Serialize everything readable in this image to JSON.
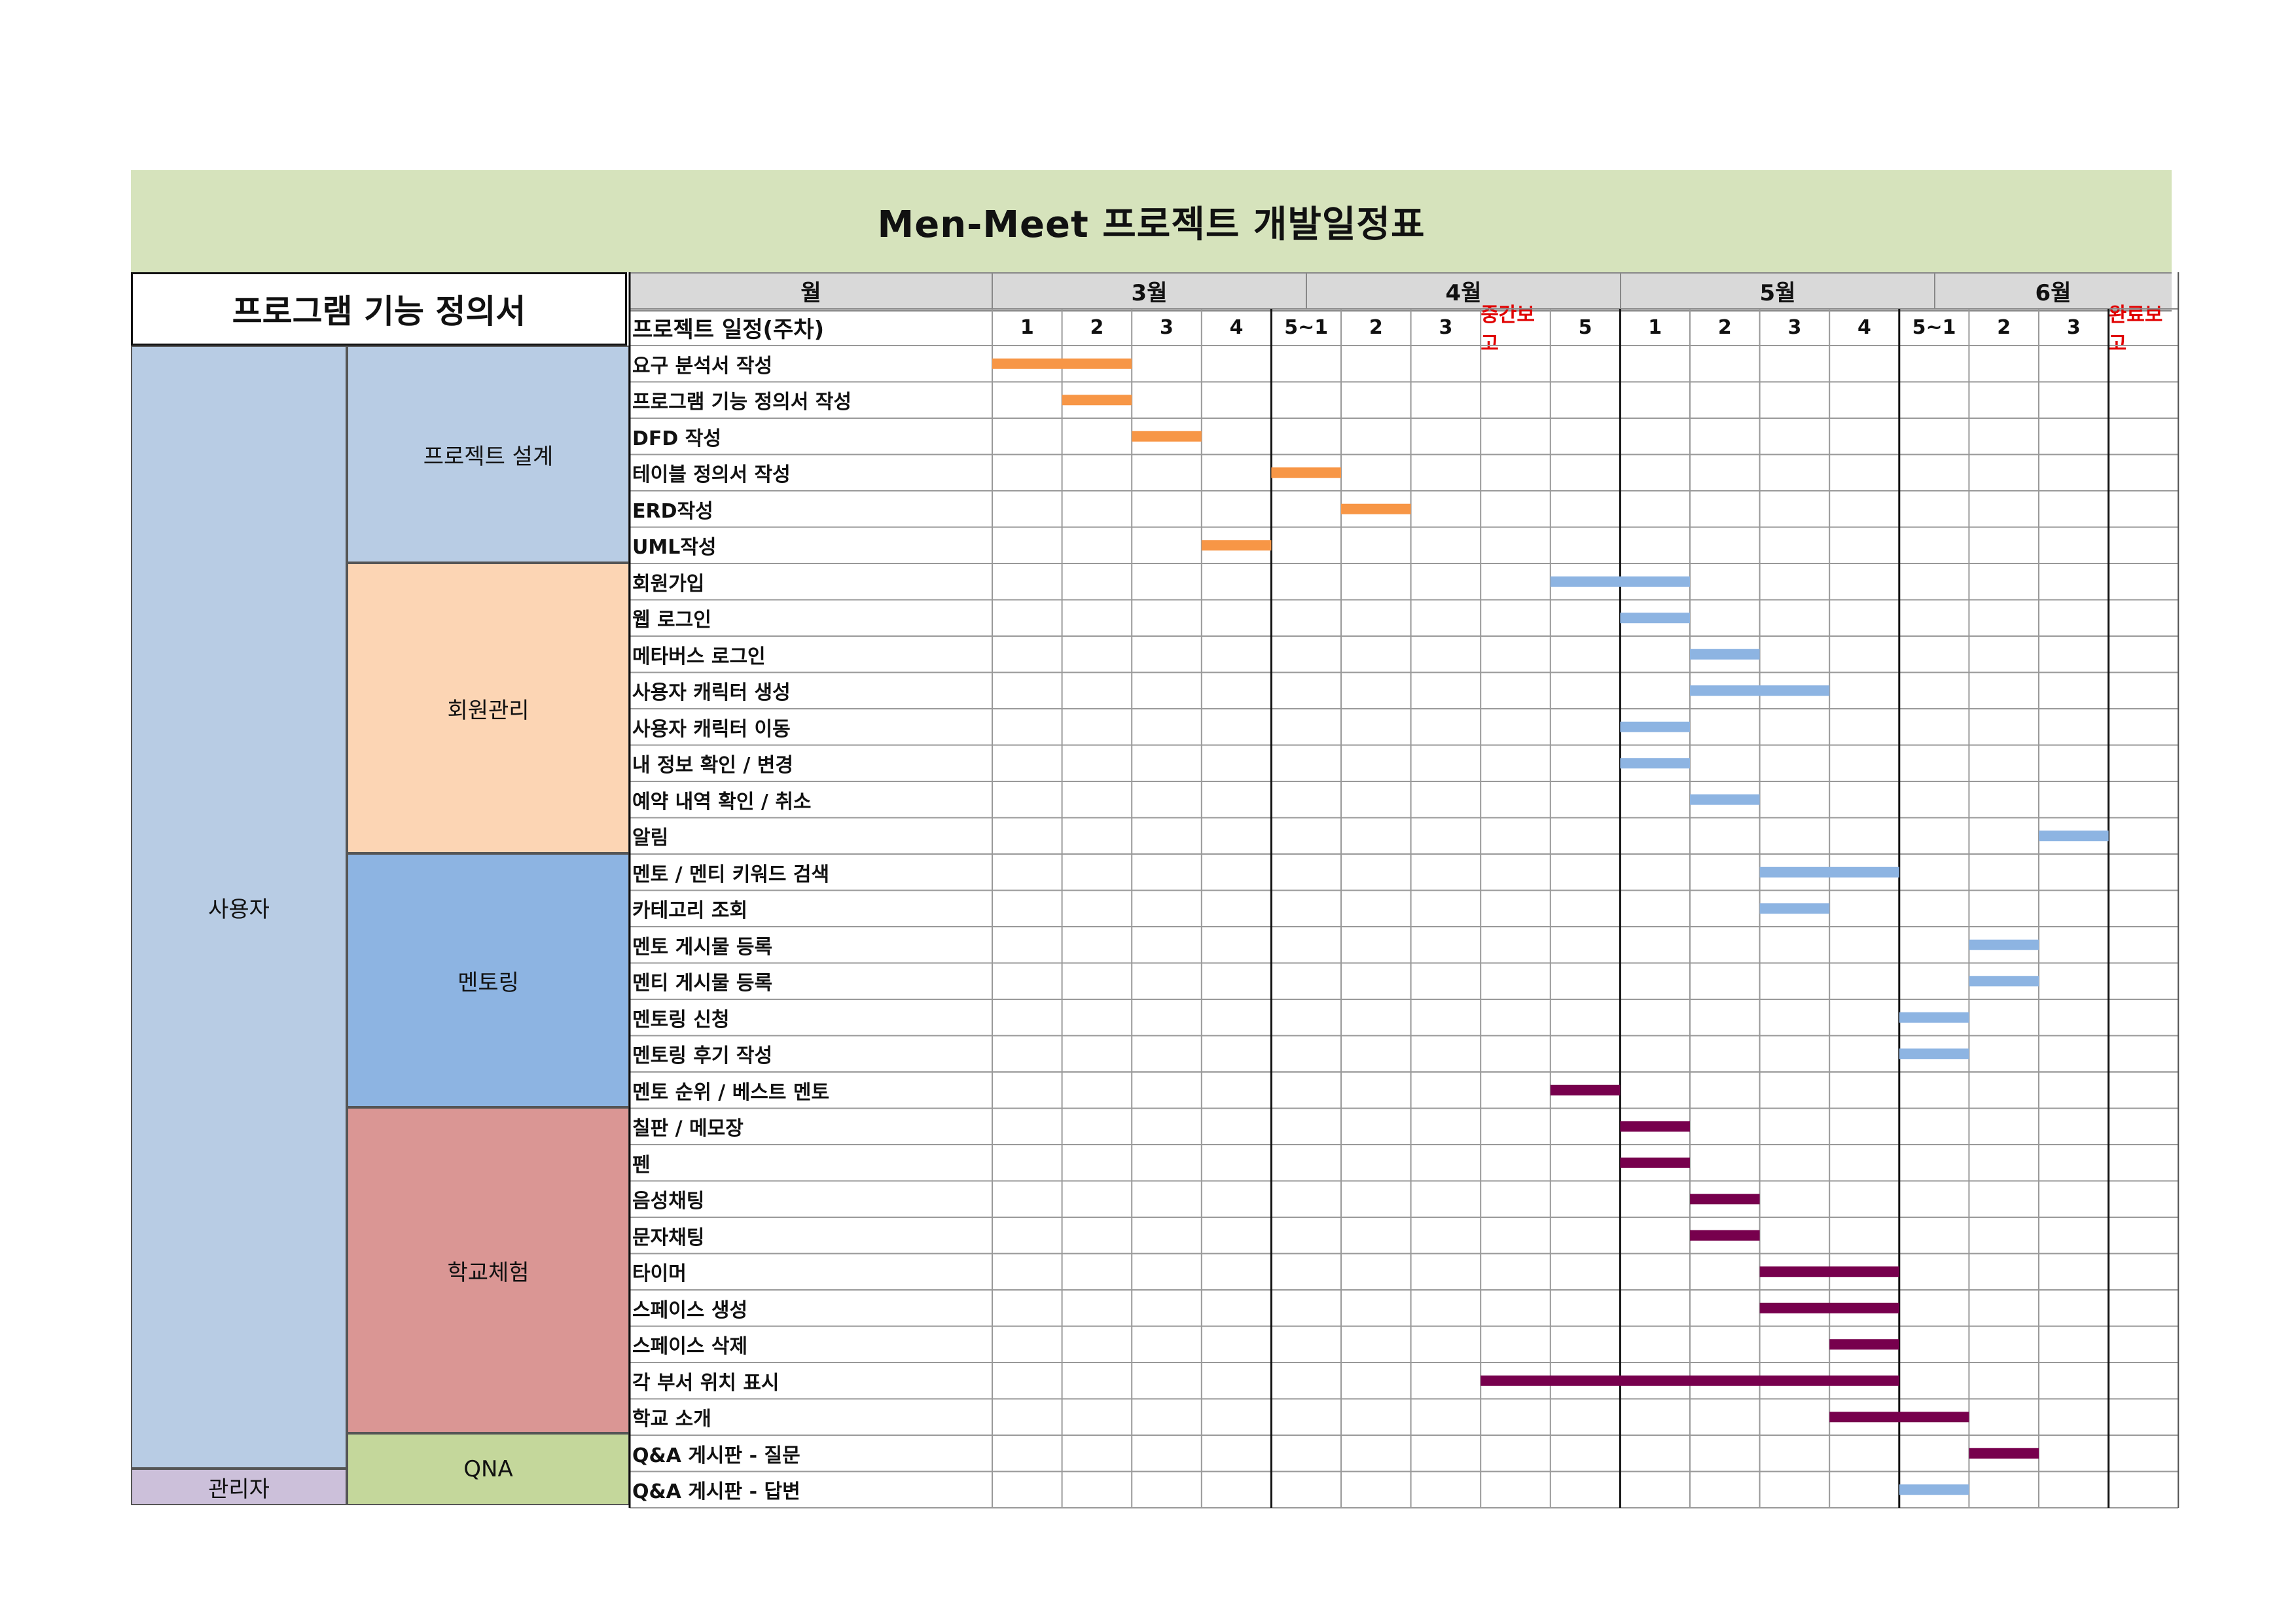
{
  "title": "Men-Meet 프로젝트 개발일정표",
  "left_header": "프로그램 기능 정의서",
  "header": {
    "month_label": "월",
    "schedule_label": "프로젝트 일정(주차)",
    "months": [
      "3월",
      "4월",
      "5월",
      "6월"
    ],
    "weeks": [
      "1",
      "2",
      "3",
      "4",
      "5~1",
      "2",
      "3",
      "중간보고",
      "5",
      "1",
      "2",
      "3",
      "4",
      "5~1",
      "2",
      "3",
      "완료보고"
    ]
  },
  "groups": {
    "user": "사용자",
    "admin": "관리자",
    "categories": [
      "프로젝트 설계",
      "회원관리",
      "멘토링",
      "학교체험",
      "QNA"
    ]
  },
  "colors": {
    "title_band": "#d6e3bc",
    "user": "#b8cce4",
    "admin": "#ccc0da",
    "design": "#b8cce4",
    "member": "#fcd5b4",
    "mentoring": "#8db4e2",
    "school": "#da9694",
    "qna": "#c4d79b",
    "bar_orange": "#f79646",
    "bar_blue": "#8db4e2",
    "bar_purple": "#77004d",
    "report_red": "#e00000"
  },
  "tasks": [
    {
      "name": "요구 분석서 작성",
      "start": 0,
      "end": 2,
      "color": "orange"
    },
    {
      "name": "프로그램 기능 정의서 작성",
      "start": 1,
      "end": 2,
      "color": "orange"
    },
    {
      "name": "DFD 작성",
      "start": 2,
      "end": 3,
      "color": "orange"
    },
    {
      "name": "테이블 정의서 작성",
      "start": 4,
      "end": 5,
      "color": "orange"
    },
    {
      "name": "ERD작성",
      "start": 5,
      "end": 6,
      "color": "orange"
    },
    {
      "name": "UML작성",
      "start": 3,
      "end": 4,
      "color": "orange"
    },
    {
      "name": "회원가입",
      "start": 8,
      "end": 10,
      "color": "blue"
    },
    {
      "name": "웹 로그인",
      "start": 9,
      "end": 10,
      "color": "blue"
    },
    {
      "name": "메타버스 로그인",
      "start": 10,
      "end": 11,
      "color": "blue"
    },
    {
      "name": "사용자 캐릭터 생성",
      "start": 10,
      "end": 12,
      "color": "blue"
    },
    {
      "name": "사용자 캐릭터 이동",
      "start": 9,
      "end": 10,
      "color": "blue"
    },
    {
      "name": "내 정보 확인 / 변경",
      "start": 9,
      "end": 10,
      "color": "blue"
    },
    {
      "name": "예약 내역 확인 / 취소",
      "start": 10,
      "end": 11,
      "color": "blue"
    },
    {
      "name": "알림",
      "start": 15,
      "end": 16,
      "color": "blue"
    },
    {
      "name": "멘토 / 멘티 키워드 검색",
      "start": 11,
      "end": 13,
      "color": "blue"
    },
    {
      "name": "카테고리 조회",
      "start": 11,
      "end": 12,
      "color": "blue"
    },
    {
      "name": "멘토 게시물 등록",
      "start": 14,
      "end": 15,
      "color": "blue"
    },
    {
      "name": "멘티 게시물 등록",
      "start": 14,
      "end": 15,
      "color": "blue"
    },
    {
      "name": "멘토링 신청",
      "start": 13,
      "end": 14,
      "color": "blue"
    },
    {
      "name": "멘토링 후기 작성",
      "start": 13,
      "end": 14,
      "color": "blue"
    },
    {
      "name": "멘토 순위 / 베스트 멘토",
      "start": 8,
      "end": 9,
      "color": "purple"
    },
    {
      "name": "칠판 / 메모장",
      "start": 9,
      "end": 10,
      "color": "purple"
    },
    {
      "name": "펜",
      "start": 9,
      "end": 10,
      "color": "purple"
    },
    {
      "name": "음성채팅",
      "start": 10,
      "end": 11,
      "color": "purple"
    },
    {
      "name": "문자채팅",
      "start": 10,
      "end": 11,
      "color": "purple"
    },
    {
      "name": "타이머",
      "start": 11,
      "end": 13,
      "color": "purple"
    },
    {
      "name": "스페이스 생성",
      "start": 11,
      "end": 13,
      "color": "purple"
    },
    {
      "name": "스페이스 삭제",
      "start": 12,
      "end": 13,
      "color": "purple"
    },
    {
      "name": "각 부서 위치 표시",
      "start": 7,
      "end": 13,
      "color": "purple"
    },
    {
      "name": "학교 소개",
      "start": 12,
      "end": 14,
      "color": "purple"
    },
    {
      "name": "Q&A 게시판 - 질문",
      "start": 14,
      "end": 15,
      "color": "purple"
    },
    {
      "name": "Q&A 게시판 - 답변",
      "start": 13,
      "end": 14,
      "color": "blue"
    }
  ]
}
